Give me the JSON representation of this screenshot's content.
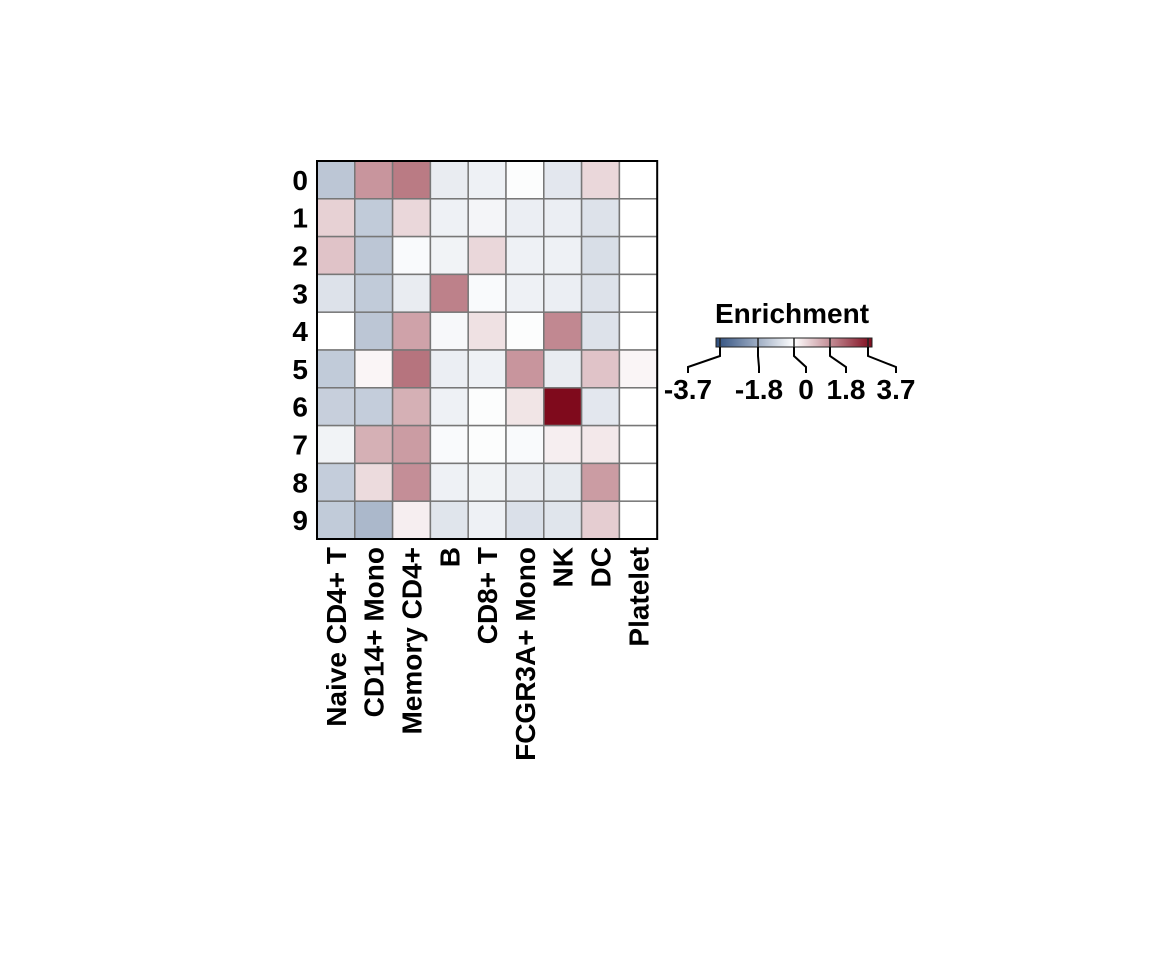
{
  "chart_data": {
    "type": "heatmap",
    "title": "",
    "xlabel": "",
    "ylabel": "",
    "rows": [
      "0",
      "1",
      "2",
      "3",
      "4",
      "5",
      "6",
      "7",
      "8",
      "9"
    ],
    "columns": [
      "Naive CD4+ T",
      "CD14+ Mono",
      "Memory CD4+",
      "B",
      "CD8+ T",
      "FCGR3A+ Mono",
      "NK",
      "DC",
      "Platelet"
    ],
    "values": [
      [
        -1.2,
        1.6,
        2.0,
        -0.4,
        -0.3,
        -0.05,
        -0.5,
        0.6,
        0.0
      ],
      [
        0.7,
        -1.1,
        0.6,
        -0.3,
        -0.2,
        -0.35,
        -0.35,
        -0.6,
        0.0
      ],
      [
        0.9,
        -1.2,
        -0.1,
        -0.25,
        0.6,
        -0.3,
        -0.3,
        -0.7,
        0.0
      ],
      [
        -0.6,
        -1.1,
        -0.4,
        1.9,
        -0.1,
        -0.3,
        -0.35,
        -0.6,
        0.0
      ],
      [
        0.0,
        -1.2,
        1.4,
        -0.15,
        0.45,
        -0.05,
        1.8,
        -0.6,
        0.0
      ],
      [
        -1.1,
        0.15,
        2.1,
        -0.35,
        -0.3,
        1.6,
        -0.4,
        0.9,
        0.15
      ],
      [
        -1.0,
        -1.05,
        1.2,
        -0.3,
        -0.05,
        0.4,
        3.7,
        -0.5,
        0.0
      ],
      [
        -0.25,
        1.2,
        1.5,
        -0.1,
        -0.05,
        -0.1,
        0.25,
        0.35,
        0.0
      ],
      [
        -1.05,
        0.55,
        1.7,
        -0.3,
        -0.25,
        -0.4,
        -0.45,
        1.5,
        0.0
      ],
      [
        -1.1,
        -1.5,
        0.25,
        -0.55,
        -0.3,
        -0.65,
        -0.55,
        0.75,
        0.0
      ]
    ],
    "colorbar": {
      "title": "Enrichment",
      "min": -3.7,
      "max": 3.7,
      "ticks": [
        -3.7,
        -1.8,
        0,
        1.8,
        3.7
      ],
      "tick_labels": [
        "-3.7",
        "-1.8",
        "0",
        "1.8",
        "3.7"
      ],
      "low_color": "#2f4f7f",
      "mid_color": "#ffffff",
      "high_color": "#7f0a1c"
    },
    "grid": true,
    "legend_position": "right"
  }
}
